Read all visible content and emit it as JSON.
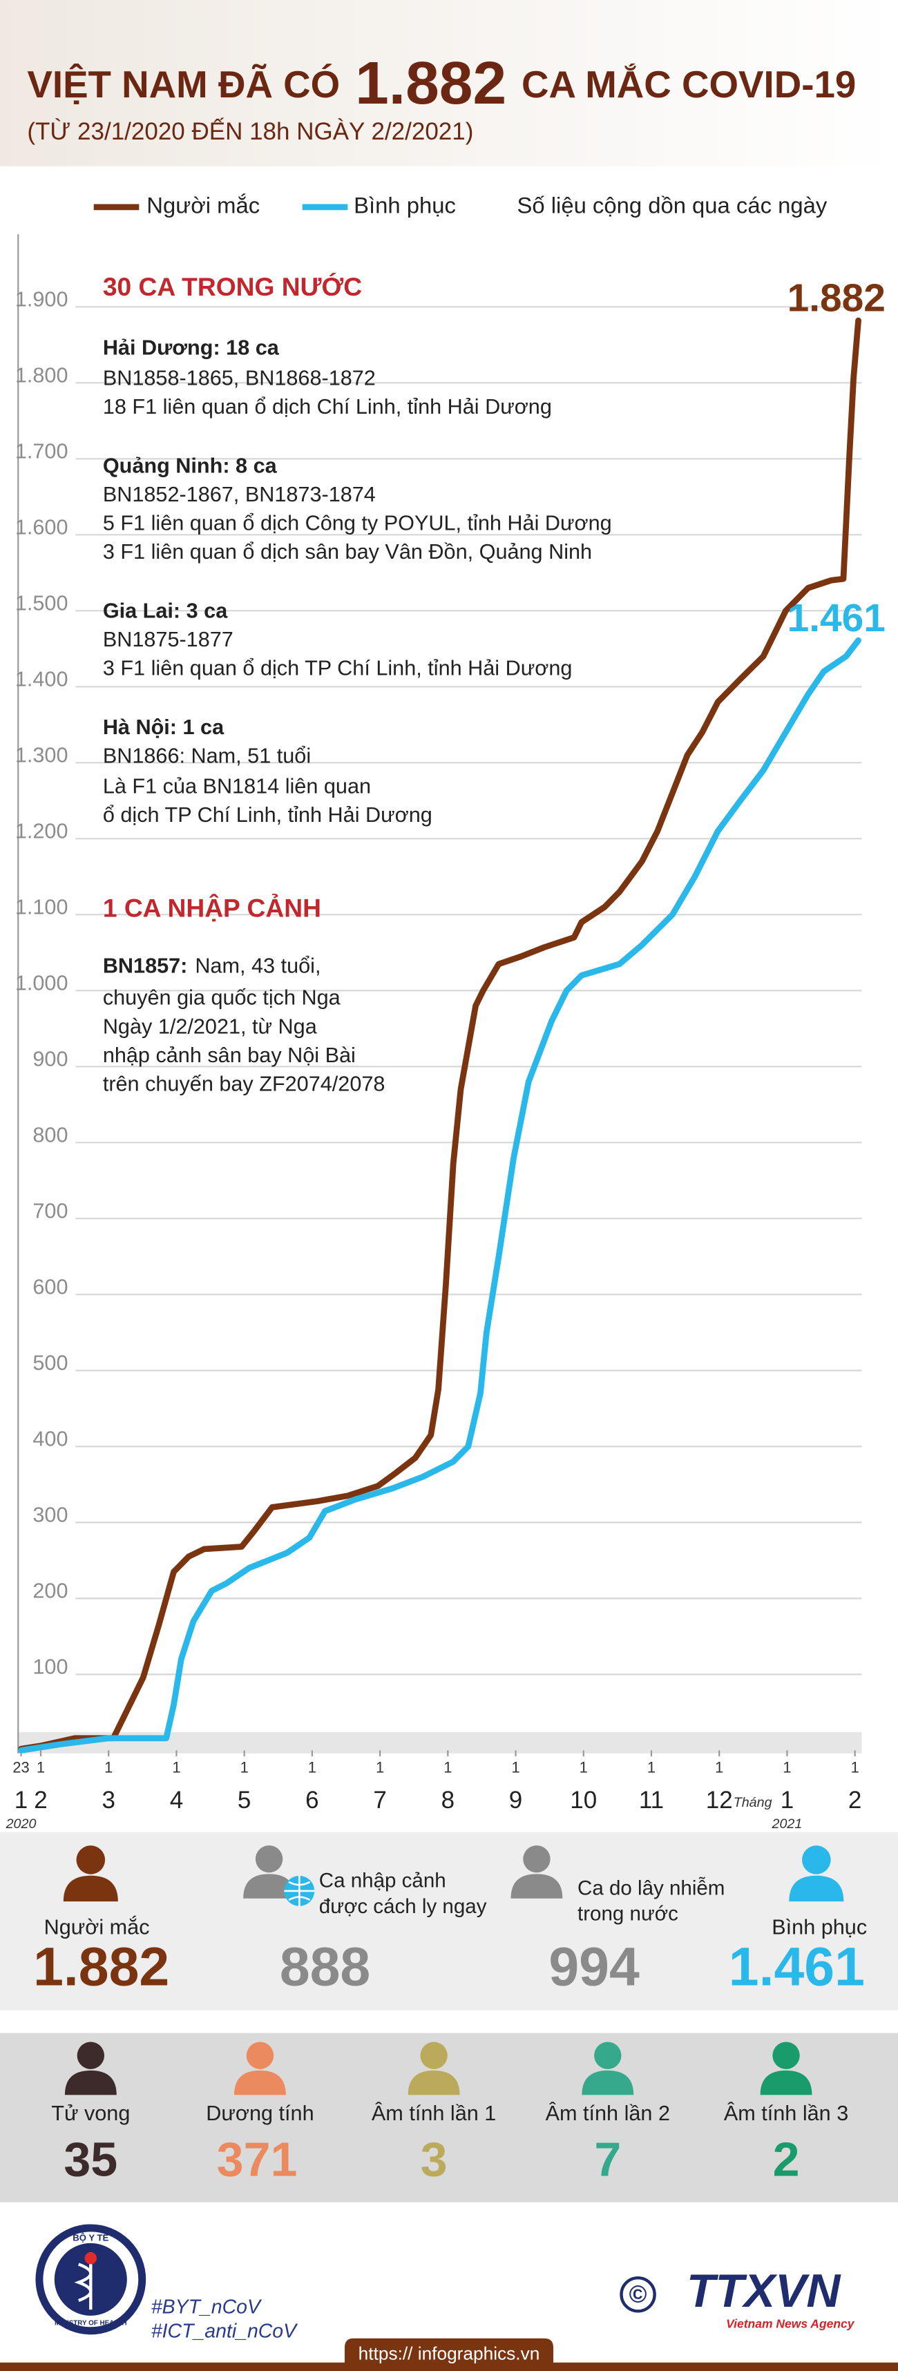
{
  "header": {
    "title_before": "VIỆT NAM ĐÃ CÓ",
    "title_number": "1.882",
    "title_after": "CA MẮC COVID-19",
    "subtitle": "(TỪ 23/1/2020 ĐẾN 18h NGÀY 2/2/2021)"
  },
  "chart_data": {
    "type": "line",
    "note": "Số liệu cộng dồn qua các ngày",
    "xlim": [
      1.64,
      14.1
    ],
    "ylim": [
      0,
      1900
    ],
    "yticks": [
      100,
      200,
      300,
      400,
      500,
      600,
      700,
      800,
      900,
      {
        "value": 1000,
        "label": "1.000"
      },
      {
        "value": 1100,
        "label": "1.100"
      },
      {
        "value": 1200,
        "label": "1.200"
      },
      {
        "value": 1300,
        "label": "1.300"
      },
      {
        "value": 1400,
        "label": "1.400"
      },
      {
        "value": 1500,
        "label": "1.500"
      },
      {
        "value": 1600,
        "label": "1.600"
      },
      {
        "value": 1700,
        "label": "1.700"
      },
      {
        "value": 1800,
        "label": "1.800"
      },
      {
        "value": 1900,
        "label": "1.900"
      }
    ],
    "grid": true,
    "xticks": [
      {
        "value": 1.71,
        "label": "23"
      },
      {
        "value": 2,
        "label": "1"
      },
      {
        "value": 3,
        "label": "1"
      },
      {
        "value": 4,
        "label": "1"
      },
      {
        "value": 5,
        "label": "1"
      },
      {
        "value": 6,
        "label": "1"
      },
      {
        "value": 7,
        "label": "1"
      },
      {
        "value": 8,
        "label": "1"
      },
      {
        "value": 9,
        "label": "1"
      },
      {
        "value": 10,
        "label": "1"
      },
      {
        "value": 11,
        "label": "1"
      },
      {
        "value": 12,
        "label": "1"
      },
      {
        "value": 13,
        "label": "1"
      },
      {
        "value": 14,
        "label": "1"
      }
    ],
    "month_labels": [
      {
        "value": 1.71,
        "label": "1"
      },
      2,
      3,
      4,
      5,
      6,
      7,
      8,
      9,
      10,
      11,
      12,
      {
        "value": 13,
        "label": "1"
      },
      {
        "value": 14,
        "label": "2"
      }
    ],
    "month_word": "Tháng",
    "year_labels": [
      {
        "value": 1.71,
        "label": "2020"
      },
      {
        "value": 13,
        "label": "2021"
      }
    ],
    "series": [
      {
        "name": "Người mắc",
        "color": "#7a3510",
        "x": [
          1.71,
          2.0,
          2.5,
          3.07,
          3.51,
          3.74,
          3.96,
          4.18,
          4.41,
          4.96,
          5.14,
          5.41,
          6.08,
          6.52,
          6.97,
          7.23,
          7.52,
          7.75,
          7.86,
          7.97,
          8.08,
          8.19,
          8.41,
          8.52,
          8.75,
          9.08,
          9.42,
          9.86,
          9.97,
          10.31,
          10.53,
          10.86,
          11.09,
          11.31,
          11.53,
          11.75,
          11.98,
          12.31,
          12.65,
          12.98,
          13.31,
          13.65,
          13.83,
          13.92,
          13.98,
          14.05
        ],
        "values": [
          2,
          6,
          16,
          16,
          96,
          165,
          235,
          255,
          265,
          268,
          288,
          320,
          328,
          335,
          348,
          365,
          385,
          415,
          475,
          612,
          772,
          870,
          980,
          1000,
          1035,
          1045,
          1057,
          1070,
          1090,
          1110,
          1130,
          1170,
          1210,
          1260,
          1310,
          1340,
          1380,
          1410,
          1440,
          1500,
          1530,
          1540,
          1542,
          1707,
          1807,
          1882
        ],
        "value_labels": [
          null,
          null,
          null,
          null,
          null,
          null,
          null,
          null,
          null,
          null,
          null,
          null,
          null,
          null,
          null,
          null,
          null,
          null,
          null,
          null,
          null,
          null,
          null,
          null,
          null,
          null,
          null,
          null,
          null,
          null,
          null,
          null,
          null,
          null,
          null,
          null,
          null,
          null,
          null,
          null,
          null,
          null,
          null,
          null,
          null,
          "1.882"
        ]
      },
      {
        "name": "Bình phục",
        "color": "#2ab7e9",
        "x": [
          1.71,
          2.29,
          3.0,
          3.85,
          3.96,
          4.07,
          4.25,
          4.52,
          4.74,
          5.07,
          5.63,
          5.96,
          6.19,
          6.63,
          7.19,
          7.63,
          8.08,
          8.3,
          8.48,
          8.57,
          8.75,
          8.97,
          9.19,
          9.53,
          9.75,
          9.97,
          10.53,
          10.86,
          11.31,
          11.64,
          11.98,
          12.31,
          12.65,
          12.98,
          13.31,
          13.54,
          13.87,
          14.05
        ],
        "values": [
          0,
          8,
          16,
          16,
          60,
          120,
          170,
          210,
          220,
          240,
          260,
          280,
          315,
          330,
          345,
          360,
          380,
          400,
          470,
          550,
          650,
          780,
          880,
          960,
          1000,
          1020,
          1035,
          1060,
          1100,
          1150,
          1210,
          1250,
          1290,
          1340,
          1390,
          1420,
          1440,
          1461
        ],
        "value_labels": [
          null,
          null,
          null,
          null,
          null,
          null,
          null,
          null,
          null,
          null,
          null,
          null,
          null,
          null,
          null,
          null,
          null,
          null,
          null,
          null,
          null,
          null,
          null,
          null,
          null,
          null,
          null,
          null,
          null,
          null,
          null,
          null,
          null,
          null,
          null,
          null,
          null,
          "1.461"
        ]
      }
    ]
  },
  "annotations": [
    {
      "heading": "30 CA TRONG NƯỚC",
      "groups": [
        {
          "title": "Hải Dương: 18 ca",
          "lines": [
            "BN1858-1865, BN1868-1872",
            "18 F1 liên quan ổ dịch Chí Linh, tỉnh Hải Dương"
          ]
        },
        {
          "title": "Quảng Ninh: 8 ca",
          "lines": [
            "BN1852-1867, BN1873-1874",
            "5 F1 liên quan ổ dịch Công ty POYUL, tỉnh Hải Dương",
            "3 F1 liên quan ổ dịch sân bay Vân Đồn, Quảng Ninh"
          ]
        },
        {
          "title": "Gia Lai: 3 ca",
          "lines": [
            "BN1875-1877",
            "3 F1 liên quan ổ dịch TP Chí Linh, tỉnh Hải Dương"
          ]
        },
        {
          "title": "Hà Nội: 1 ca",
          "lines": [
            "BN1866: Nam, 51 tuổi",
            "Là F1 của BN1814 liên quan",
            "ổ dịch TP Chí Linh, tỉnh Hải Dương"
          ]
        }
      ]
    },
    {
      "heading": "1 CA NHẬP CẢNH",
      "groups": [
        {
          "title": "BN1857:",
          "lines": [
            "Nam, 43 tuổi,",
            "chuyên gia quốc tịch Nga",
            "Ngày 1/2/2021, từ Nga",
            "nhập cảnh sân bay Nội Bài",
            "trên chuyến bay ZF2074/2078"
          ]
        }
      ]
    }
  ],
  "summary": [
    {
      "label": [
        "Người mắc"
      ],
      "value": "1.882"
    },
    {
      "label": [
        "Ca nhập cảnh",
        "được cách ly ngay"
      ],
      "value": "888"
    },
    {
      "label": [
        "Ca do lây nhiễm",
        "trong nước"
      ],
      "value": "994"
    },
    {
      "label": [
        "Bình phục"
      ],
      "value": "1.461"
    }
  ],
  "outcomes": [
    {
      "label": "Tử vong",
      "value": "35"
    },
    {
      "label": "Dương tính",
      "value": "371"
    },
    {
      "label": "Âm tính lần 1",
      "value": "3"
    },
    {
      "label": "Âm tính lần 2",
      "value": "7"
    },
    {
      "label": "Âm tính lần 3",
      "value": "2"
    }
  ],
  "footer": {
    "logo_top": "BỘ Y TẾ",
    "logo_bottom": "MINISTRY OF HEALTH",
    "hashtags": [
      "#BYT_nCoV",
      "#ICT_anti_nCoV"
    ],
    "copyright": "©",
    "agency": "TTXVN",
    "agency_en": "Vietnam News Agency",
    "url": "https:// infographics.vn"
  }
}
